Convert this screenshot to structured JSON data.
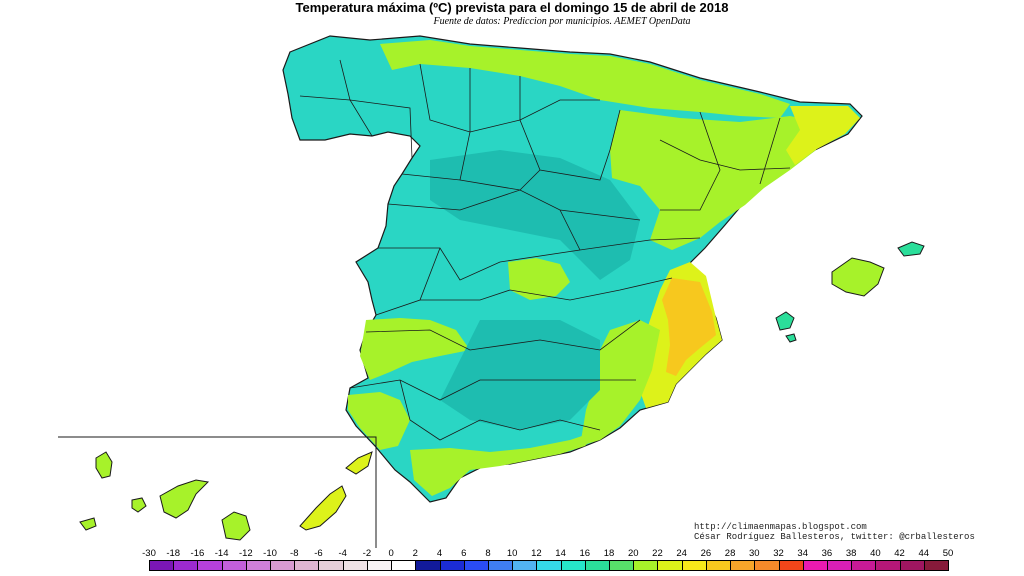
{
  "map": {
    "title": "Temperatura máxima (ºC) prevista para el domingo 15 de abril de 2018",
    "subtitle": "Fuente de datos: Prediccion por municipios. AEMET OpenData",
    "credit_url": "http://climaenmapas.blogspot.com",
    "credit_author": "César Rodríguez Ballesteros, twitter: @crballesteros"
  },
  "legend": {
    "values": [
      "-30",
      "-18",
      "-16",
      "-14",
      "-12",
      "-10",
      "-8",
      "-6",
      "-4",
      "-2",
      "0",
      "2",
      "4",
      "6",
      "8",
      "10",
      "12",
      "14",
      "16",
      "18",
      "20",
      "22",
      "24",
      "26",
      "28",
      "30",
      "32",
      "34",
      "36",
      "38",
      "40",
      "42",
      "44",
      "50"
    ],
    "colors": [
      "#7b16b5",
      "#9c2ad0",
      "#b640dc",
      "#c35fdc",
      "#cf7fd9",
      "#d89bd2",
      "#dfb5d2",
      "#e6cfd9",
      "#efe2e6",
      "#f7f2f4",
      "#ffffff",
      "#121a9a",
      "#1b2cd6",
      "#2a4cf5",
      "#3f7ef2",
      "#52b3f2",
      "#35d9e9",
      "#26e6c9",
      "#2bde9a",
      "#57e06a",
      "#a7f22a",
      "#ddf21a",
      "#f7e81a",
      "#f7c81e",
      "#f7a52a",
      "#f68a2a",
      "#f2461a",
      "#ea1ab0",
      "#d91fb6",
      "#c81a96",
      "#b51778",
      "#9f1660",
      "#871a3a"
    ]
  }
}
